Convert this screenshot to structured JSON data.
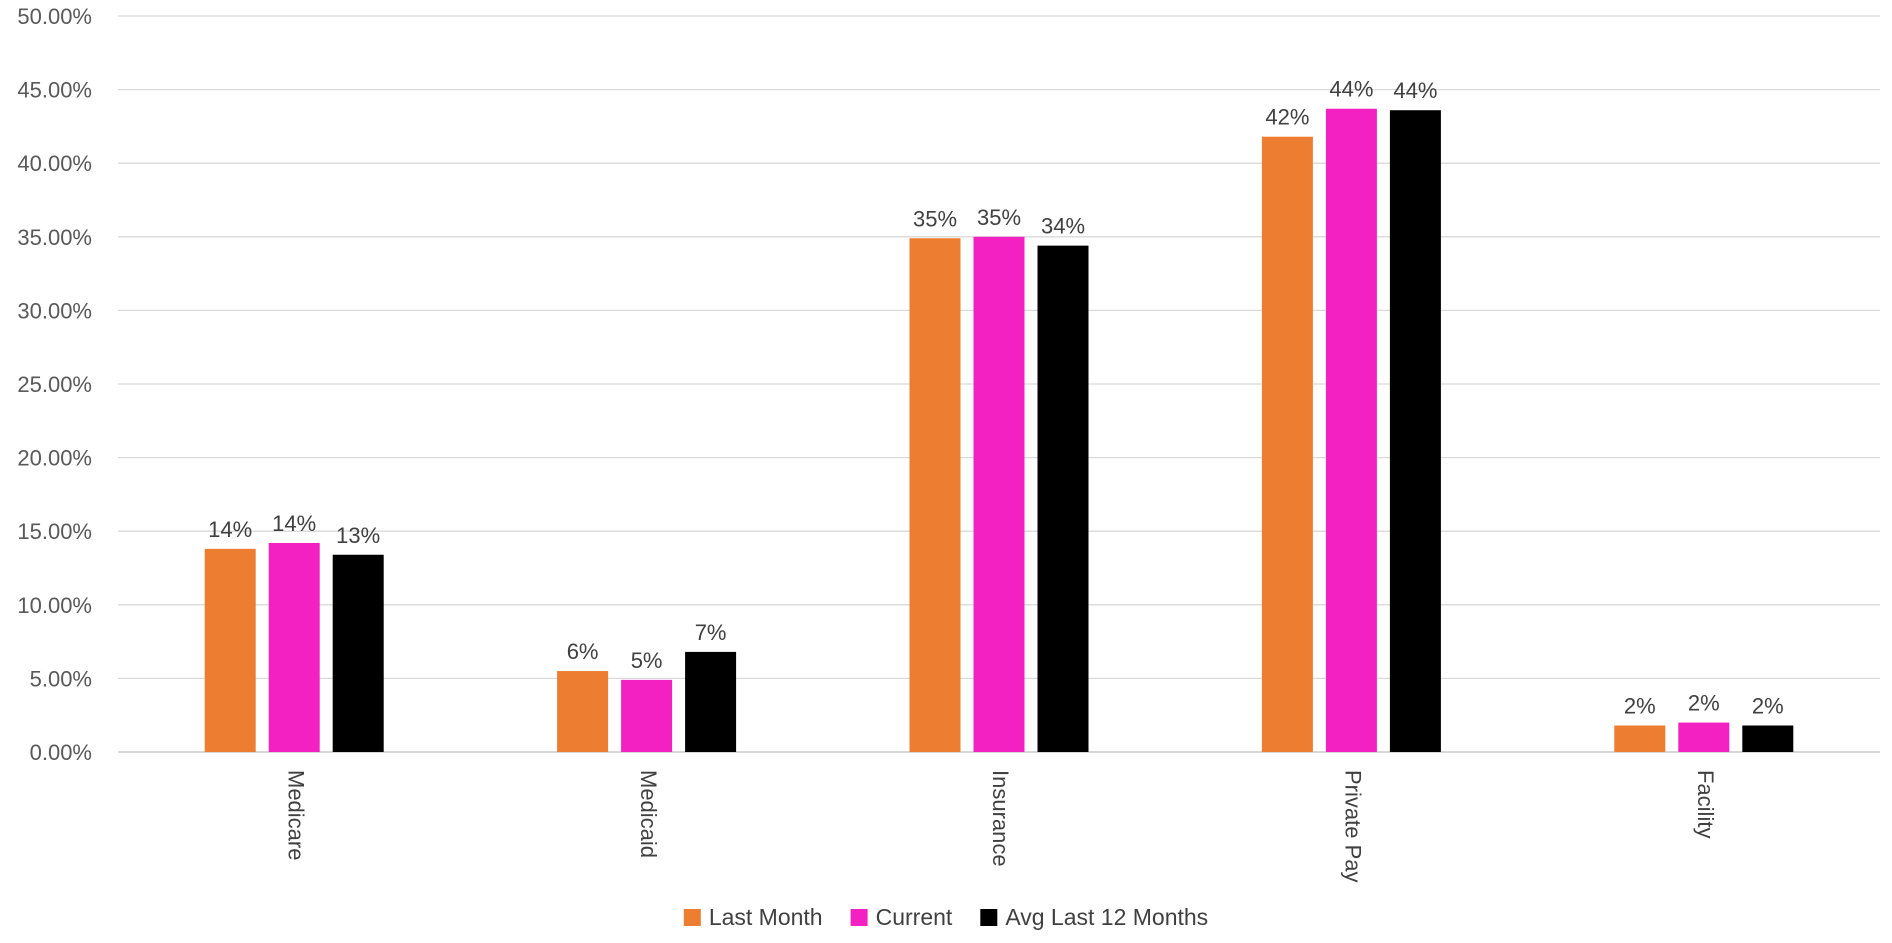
{
  "chart_data": {
    "type": "bar",
    "categories": [
      "Medicare",
      "Medicaid",
      "Insurance",
      "Private Pay",
      "Facility"
    ],
    "series": [
      {
        "name": "Last Month",
        "color": "#ED7D31",
        "values": [
          13.8,
          5.5,
          34.9,
          41.8,
          1.8
        ],
        "labels": [
          "14%",
          "6%",
          "35%",
          "42%",
          "2%"
        ]
      },
      {
        "name": "Current",
        "color": "#F321C1",
        "values": [
          14.2,
          4.9,
          35.0,
          43.7,
          2.0
        ],
        "labels": [
          "14%",
          "5%",
          "35%",
          "44%",
          "2%"
        ]
      },
      {
        "name": "Avg Last 12 Months",
        "color": "#000000",
        "values": [
          13.4,
          6.8,
          34.4,
          43.6,
          1.8
        ],
        "labels": [
          "13%",
          "7%",
          "34%",
          "44%",
          "2%"
        ]
      }
    ],
    "y_ticks": [
      "0.00%",
      "5.00%",
      "10.00%",
      "15.00%",
      "20.00%",
      "25.00%",
      "30.00%",
      "35.00%",
      "40.00%",
      "45.00%",
      "50.00%"
    ],
    "ylim": [
      0,
      50
    ],
    "grid": true,
    "legend_position": "bottom",
    "title": "",
    "xlabel": "",
    "ylabel": ""
  }
}
